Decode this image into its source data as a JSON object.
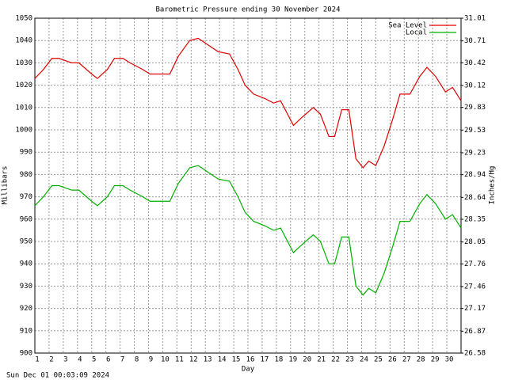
{
  "chart_data": {
    "type": "line",
    "title": "Barometric Pressure ending 30 November 2024",
    "xlabel": "Day",
    "ylabel": "Millibars",
    "y2label": "Inches/Hg",
    "footer": "Sun Dec 01 00:03:09 2024",
    "x": [
      1.0,
      1.6,
      2.2,
      2.7,
      3.6,
      4.1,
      5.0,
      5.4,
      6.1,
      6.6,
      7.2,
      7.7,
      8.6,
      9.1,
      10.5,
      11.1,
      11.9,
      12.5,
      13.2,
      13.9,
      14.7,
      15.3,
      15.8,
      16.4,
      17.2,
      17.8,
      18.3,
      19.2,
      19.7,
      20.6,
      21.1,
      21.7,
      22.1,
      22.6,
      23.1,
      23.6,
      24.1,
      24.5,
      25.0,
      25.6,
      26.2,
      26.7,
      27.4,
      28.1,
      28.6,
      29.2,
      29.9,
      30.4,
      31.0
    ],
    "series": [
      {
        "name": "Sea Level",
        "color": "#e00000",
        "values": [
          1023,
          1027,
          1032,
          1032,
          1030,
          1030,
          1025,
          1023,
          1027,
          1032,
          1032,
          1030,
          1027,
          1025,
          1025,
          1033,
          1040,
          1041,
          1038,
          1035,
          1034,
          1027,
          1020,
          1016,
          1014,
          1012,
          1013,
          1002,
          1005,
          1010,
          1007,
          997,
          997,
          1009,
          1009,
          987,
          983,
          986,
          984,
          993,
          1005,
          1016,
          1016,
          1024,
          1028,
          1024,
          1017,
          1019,
          1013
        ]
      },
      {
        "name": "Local",
        "color": "#00b000",
        "values": [
          966,
          970,
          975,
          975,
          973,
          973,
          968,
          966,
          970,
          975,
          975,
          973,
          970,
          968,
          968,
          976,
          983,
          984,
          981,
          978,
          977,
          970,
          963,
          959,
          957,
          955,
          956,
          945,
          948,
          953,
          950,
          940,
          940,
          952,
          952,
          930,
          926,
          929,
          927,
          936,
          948,
          959,
          959,
          967,
          971,
          967,
          960,
          962,
          956
        ]
      }
    ],
    "xlim": [
      1,
      31
    ],
    "xticks": [
      1,
      2,
      3,
      4,
      5,
      6,
      7,
      8,
      9,
      10,
      11,
      12,
      13,
      14,
      15,
      16,
      17,
      18,
      19,
      20,
      21,
      22,
      23,
      24,
      25,
      26,
      27,
      28,
      29,
      30
    ],
    "ylim": [
      900,
      1050
    ],
    "yticks": [
      900,
      910,
      920,
      930,
      940,
      950,
      960,
      970,
      980,
      990,
      1000,
      1010,
      1020,
      1030,
      1040,
      1050
    ],
    "y2lim": [
      26.58,
      31.01
    ],
    "y2ticks": [
      26.58,
      26.87,
      27.17,
      27.46,
      27.76,
      28.05,
      28.35,
      28.64,
      28.94,
      29.23,
      29.53,
      29.83,
      30.12,
      30.42,
      30.71,
      31.01
    ],
    "grid": true,
    "legend": "upper right"
  }
}
